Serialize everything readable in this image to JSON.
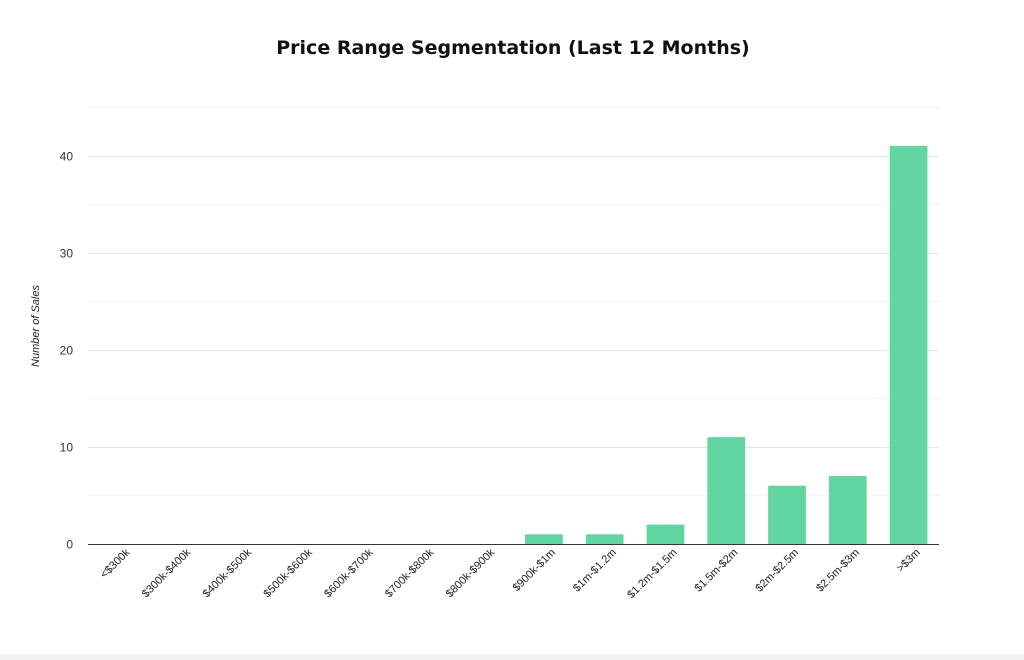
{
  "chart_data": {
    "type": "bar",
    "title": "Price Range Segmentation (Last 12 Months)",
    "xlabel": "",
    "ylabel": "Number of Sales",
    "categories": [
      "<$300k",
      "$300k-$400k",
      "$400k-$500k",
      "$500k-$600k",
      "$600k-$700k",
      "$700k-$800k",
      "$800k-$900k",
      "$900k-$1m",
      "$1m-$1.2m",
      "$1.2m-$1.5m",
      "$1.5m-$2m",
      "$2m-$2.5m",
      "$2.5m-$3m",
      ">$3m"
    ],
    "values": [
      0,
      0,
      0,
      0,
      0,
      0,
      0,
      1,
      1,
      2,
      11,
      6,
      7,
      41
    ],
    "ylim": [
      0,
      45
    ],
    "yticks": [
      0,
      10,
      20,
      30,
      40
    ],
    "grid": true,
    "legend": "none",
    "bar_color": "#63d5a0"
  }
}
